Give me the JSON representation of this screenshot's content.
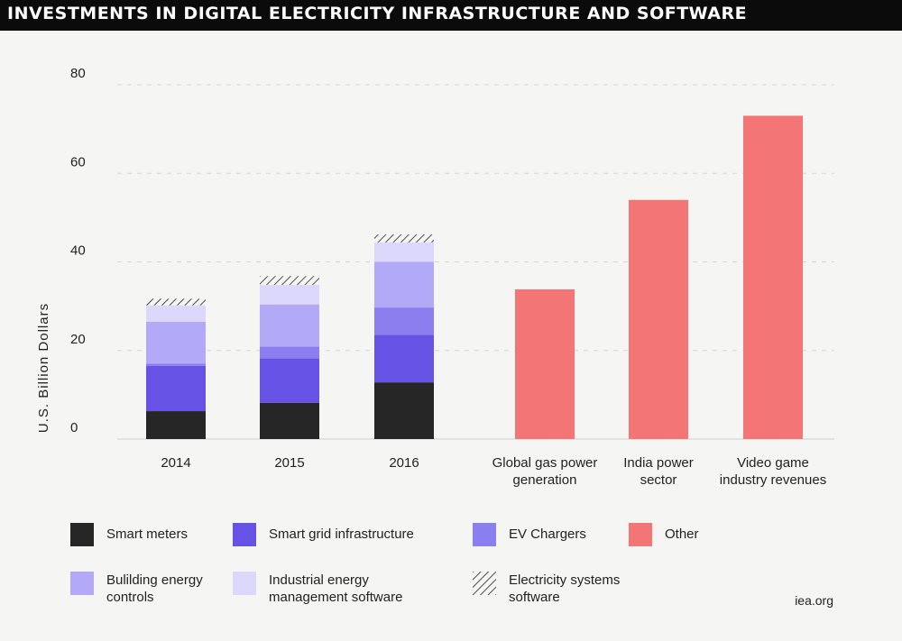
{
  "header": {
    "title": "INVESTMENTS IN DIGITAL ELECTRICITY INFRASTRUCTURE AND SOFTWARE"
  },
  "source": "iea.org",
  "colors": {
    "smart_meters": "#262626",
    "smart_grid": "#6652e4",
    "ev_chargers": "#8b7ff0",
    "building_energy": "#b3aaf7",
    "industrial_energy": "#dcd8fb",
    "electricity_software": "hatch",
    "other": "#f47575"
  },
  "chart_data": {
    "type": "bar",
    "ylabel": "U.S. Billion Dollars",
    "ylim": [
      0,
      80
    ],
    "yticks": [
      "0",
      "20",
      "40",
      "60",
      "80"
    ],
    "grid": true,
    "legend_placement": "bottom",
    "categories": [
      "2014",
      "2015",
      "2016",
      "Global gas power generation",
      "India power sector",
      "Video game industry revenues"
    ],
    "category_label_lines": [
      [
        "2014"
      ],
      [
        "2015"
      ],
      [
        "2016"
      ],
      [
        "Global gas power",
        "generation"
      ],
      [
        "India power",
        "sector"
      ],
      [
        "Video game",
        "industry revenues"
      ]
    ],
    "series": [
      {
        "name": "Smart meters",
        "key": "smart_meters",
        "values": [
          6.3,
          8.2,
          12.8,
          0,
          0,
          0
        ]
      },
      {
        "name": "Smart grid infrastructure",
        "key": "smart_grid",
        "values": [
          10.2,
          10.0,
          10.7,
          0,
          0,
          0
        ]
      },
      {
        "name": "EV Chargers",
        "key": "ev_chargers",
        "values": [
          0.5,
          2.7,
          6.2,
          0,
          0,
          0
        ]
      },
      {
        "name": "Bulilding energy controls",
        "key": "building_energy",
        "values": [
          9.5,
          9.5,
          10.3,
          0,
          0,
          0
        ]
      },
      {
        "name": "Industrial energy management software",
        "key": "industrial_energy",
        "values": [
          3.7,
          4.4,
          4.4,
          0,
          0,
          0
        ]
      },
      {
        "name": "Electricity systems software",
        "key": "electricity_software",
        "values": [
          1.5,
          2.0,
          1.8,
          0,
          0,
          0
        ]
      },
      {
        "name": "Other",
        "key": "other",
        "values": [
          0,
          0,
          0,
          33.8,
          54.0,
          73.0
        ]
      }
    ]
  },
  "legend": {
    "items": [
      {
        "label": "Smart meters",
        "key": "smart_meters"
      },
      {
        "label": "Smart grid infrastructure",
        "key": "smart_grid"
      },
      {
        "label": "EV Chargers",
        "key": "ev_chargers"
      },
      {
        "label": "Other",
        "key": "other"
      },
      {
        "label": "Bulilding energy controls",
        "key": "building_energy"
      },
      {
        "label": "Industrial energy management software",
        "key": "industrial_energy"
      },
      {
        "label": "Electricity systems software",
        "key": "electricity_software"
      }
    ]
  }
}
